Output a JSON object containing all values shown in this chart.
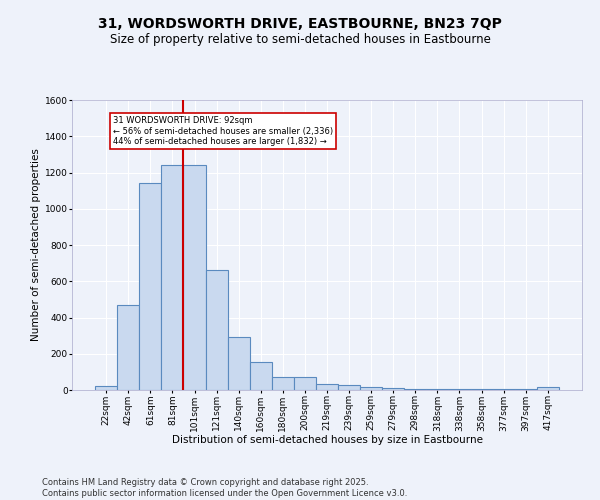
{
  "title1": "31, WORDSWORTH DRIVE, EASTBOURNE, BN23 7QP",
  "title2": "Size of property relative to semi-detached houses in Eastbourne",
  "xlabel": "Distribution of semi-detached houses by size in Eastbourne",
  "ylabel": "Number of semi-detached properties",
  "categories": [
    "22sqm",
    "42sqm",
    "61sqm",
    "81sqm",
    "101sqm",
    "121sqm",
    "140sqm",
    "160sqm",
    "180sqm",
    "200sqm",
    "219sqm",
    "239sqm",
    "259sqm",
    "279sqm",
    "298sqm",
    "318sqm",
    "338sqm",
    "358sqm",
    "377sqm",
    "397sqm",
    "417sqm"
  ],
  "values": [
    22,
    470,
    1140,
    1240,
    1240,
    660,
    295,
    155,
    70,
    70,
    35,
    25,
    15,
    10,
    8,
    5,
    5,
    3,
    3,
    3,
    15
  ],
  "bar_color": "#c9d9ef",
  "bar_edge_color": "#5a8abf",
  "red_line_x": 3.5,
  "annotation_title": "31 WORDSWORTH DRIVE: 92sqm",
  "annotation_line1": "← 56% of semi-detached houses are smaller (2,336)",
  "annotation_line2": "44% of semi-detached houses are larger (1,832) →",
  "annotation_box_color": "#ffffff",
  "annotation_box_edge": "#cc0000",
  "footnote1": "Contains HM Land Registry data © Crown copyright and database right 2025.",
  "footnote2": "Contains public sector information licensed under the Open Government Licence v3.0.",
  "ylim": [
    0,
    1600
  ],
  "yticks": [
    0,
    200,
    400,
    600,
    800,
    1000,
    1200,
    1400,
    1600
  ],
  "bg_color": "#eef2fa",
  "grid_color": "#ffffff",
  "title_fontsize": 10,
  "subtitle_fontsize": 8.5,
  "axis_label_fontsize": 7.5,
  "tick_fontsize": 6.5,
  "footnote_fontsize": 6
}
